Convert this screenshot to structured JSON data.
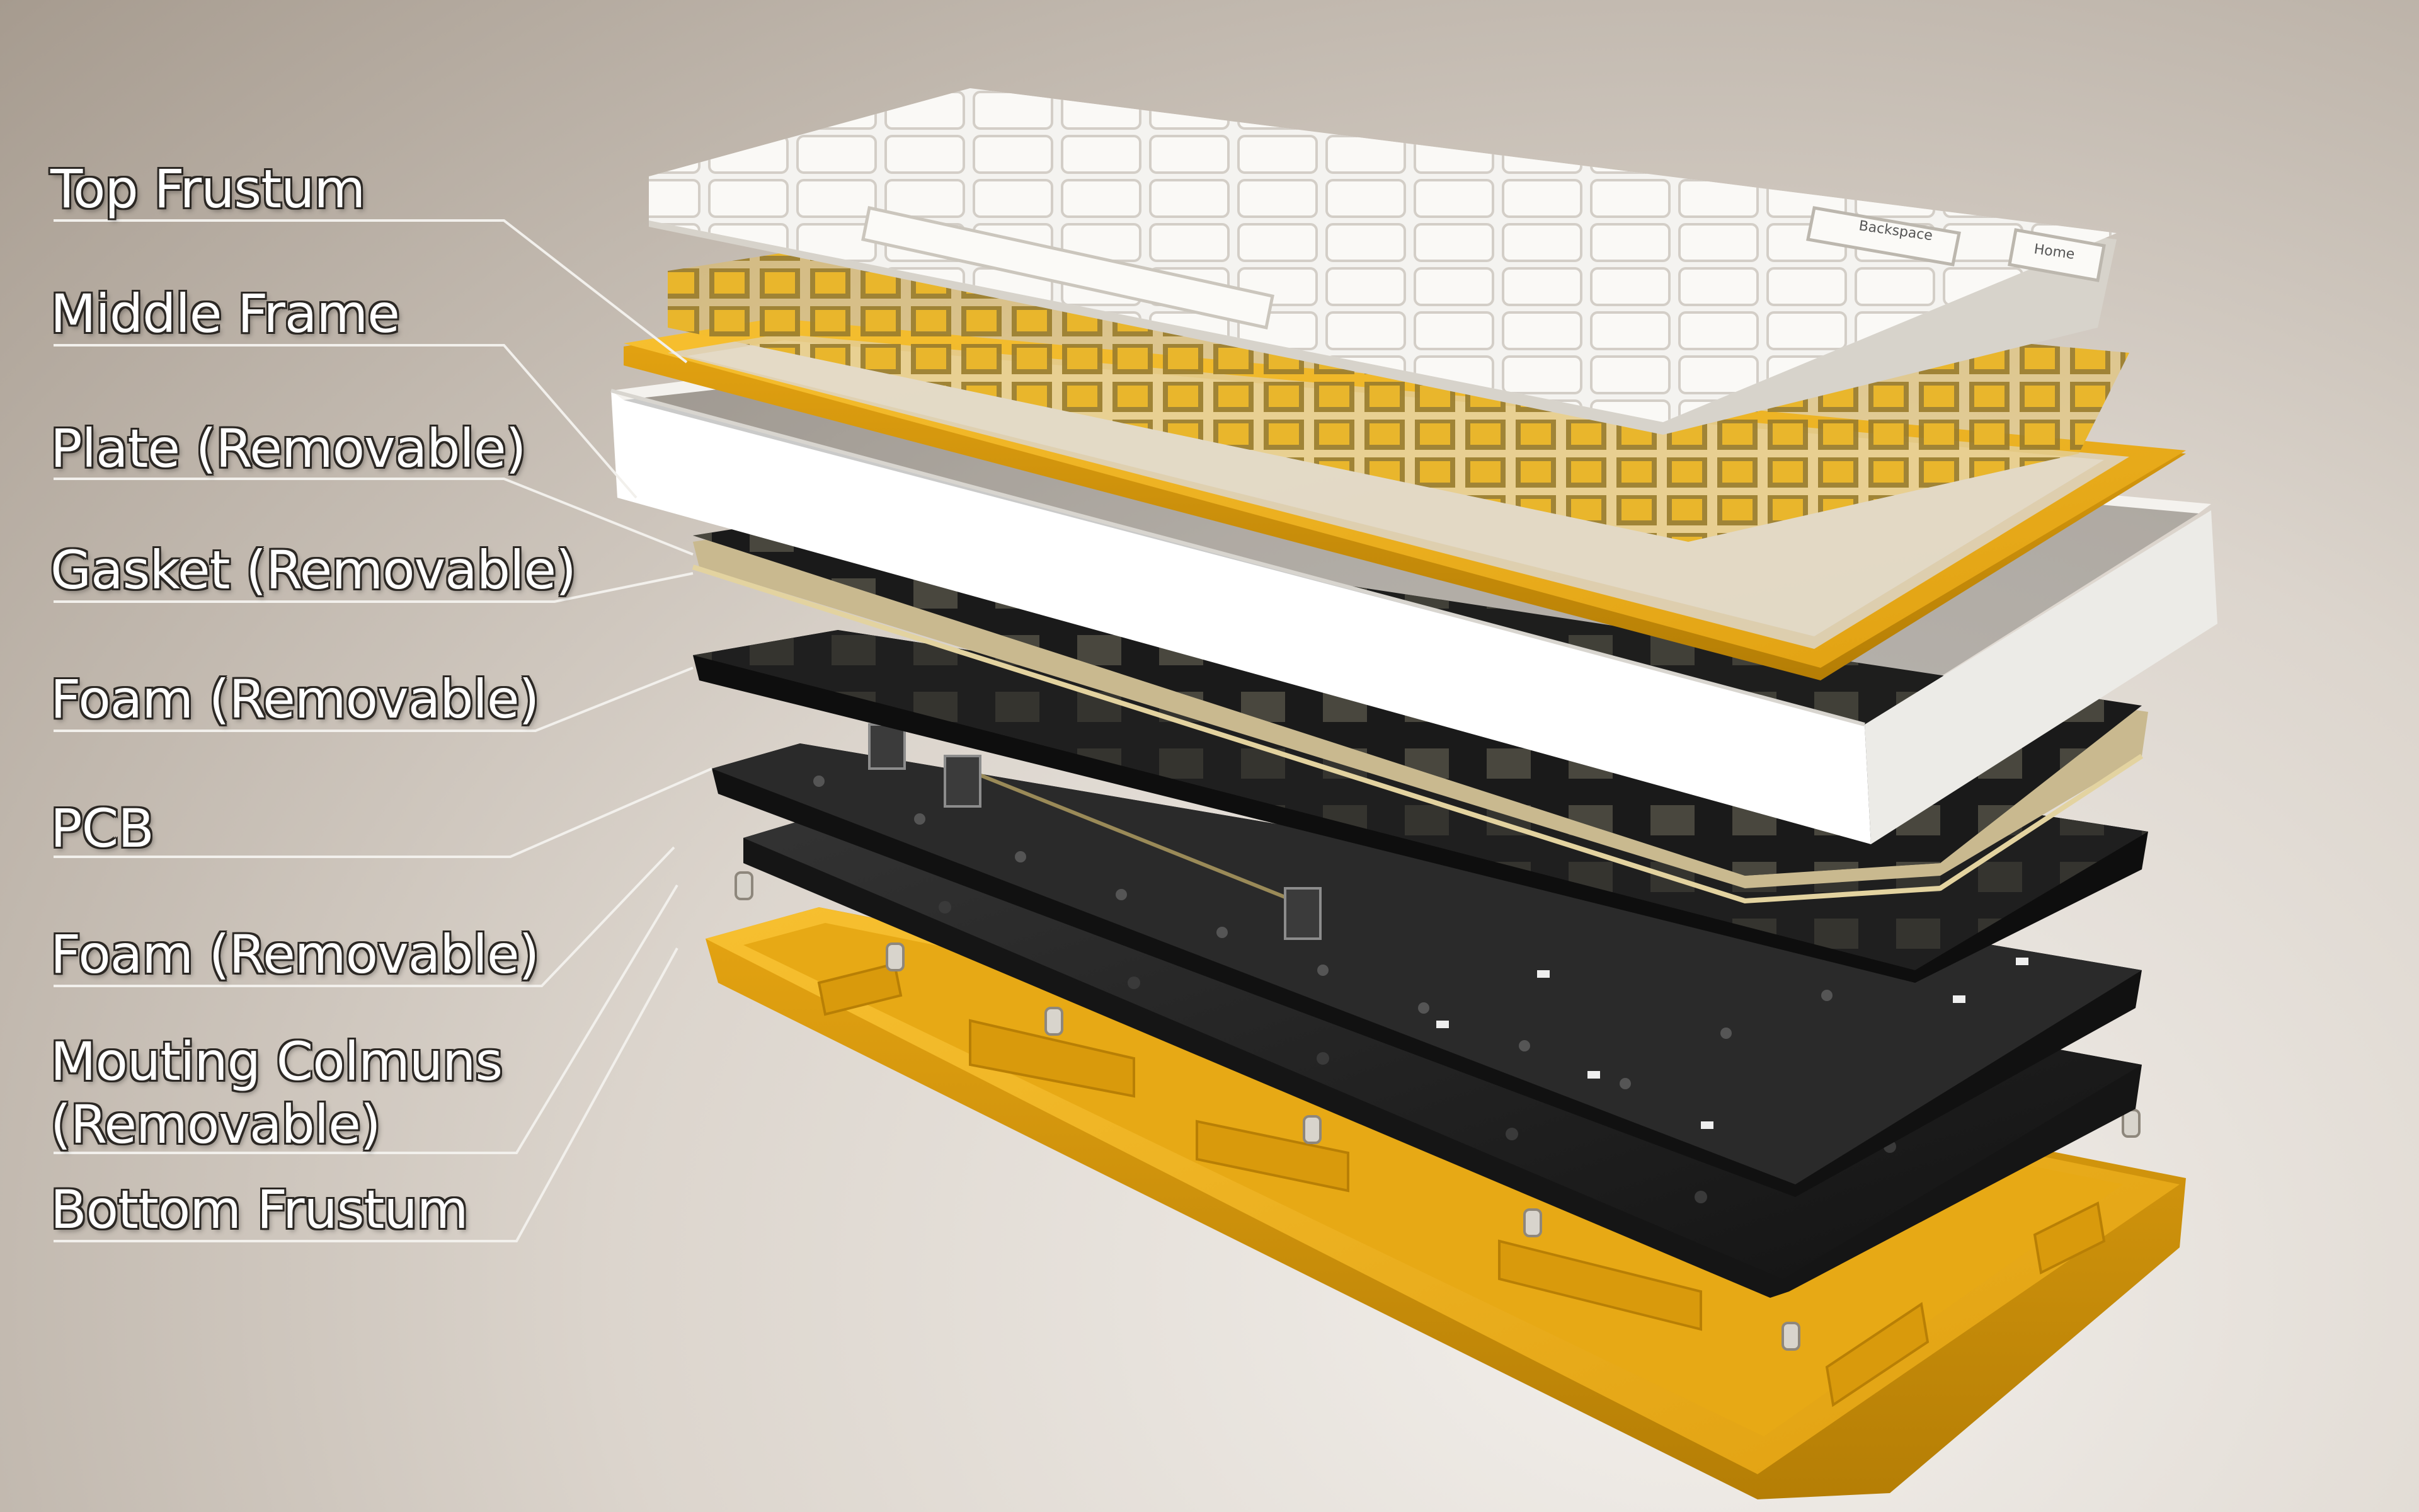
{
  "callouts": [
    {
      "id": "top-frustum",
      "label": "Top Frustum"
    },
    {
      "id": "middle-frame",
      "label": "Middle Frame"
    },
    {
      "id": "plate",
      "label": "Plate (Removable)"
    },
    {
      "id": "gasket",
      "label": "Gasket (Removable)"
    },
    {
      "id": "foam-upper",
      "label": "Foam (Removable)"
    },
    {
      "id": "pcb",
      "label": "PCB"
    },
    {
      "id": "foam-lower",
      "label": "Foam (Removable)"
    },
    {
      "id": "mounting-columns",
      "label": "Mouting Colmuns",
      "label_line2": "(Removable)"
    },
    {
      "id": "bottom-frustum",
      "label": "Bottom Frustum"
    }
  ],
  "keycap_legends": {
    "backspace": "Backspace",
    "home": "Home"
  },
  "colors": {
    "accent_yellow": "#f2b31c",
    "keycap_white": "#f4f3f0",
    "layer_black": "#1d1d1d",
    "pcb_black": "#2a2a2a",
    "label_outline": "#2c2824"
  }
}
